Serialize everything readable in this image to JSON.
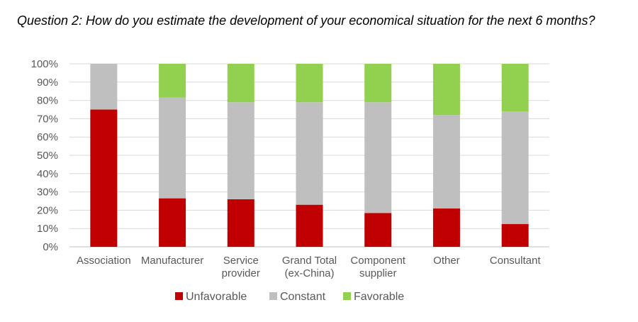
{
  "chart_data": {
    "type": "bar",
    "stacked": true,
    "title": "Question 2: How do you estimate the development of your economical situation for the next 6 months?",
    "categories": [
      [
        "Association"
      ],
      [
        "Manufacturer"
      ],
      [
        "Service",
        "provider"
      ],
      [
        "Grand Total",
        "(ex-China)"
      ],
      [
        "Component",
        "supplier"
      ],
      [
        "Other"
      ],
      [
        "Consultant"
      ]
    ],
    "series": [
      {
        "name": "Unfavorable",
        "color": "#c00000",
        "values": [
          75,
          26.5,
          26,
          23,
          18.5,
          21,
          12.5
        ]
      },
      {
        "name": "Constant",
        "color": "#bfbfbf",
        "values": [
          25,
          55,
          53,
          56,
          60.5,
          51,
          61.5
        ]
      },
      {
        "name": "Favorable",
        "color": "#92d050",
        "values": [
          0,
          18.5,
          21,
          21,
          21,
          28,
          26
        ]
      }
    ],
    "ylim": [
      0,
      100
    ],
    "yticks": [
      "0%",
      "10%",
      "20%",
      "30%",
      "40%",
      "50%",
      "60%",
      "70%",
      "80%",
      "90%",
      "100%"
    ],
    "grid": true,
    "legend_position": "bottom"
  }
}
